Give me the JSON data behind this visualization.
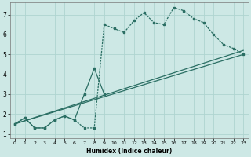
{
  "xlabel": "Humidex (Indice chaleur)",
  "xlim": [
    -0.5,
    23.5
  ],
  "ylim": [
    0.8,
    7.6
  ],
  "xticks": [
    0,
    1,
    2,
    3,
    4,
    5,
    6,
    7,
    8,
    9,
    10,
    11,
    12,
    13,
    14,
    15,
    16,
    17,
    18,
    19,
    20,
    21,
    22,
    23
  ],
  "yticks": [
    1,
    2,
    3,
    4,
    5,
    6,
    7
  ],
  "bg_color": "#cde8e5",
  "grid_color": "#afd4d0",
  "line_color": "#2a6e63",
  "line1_x": [
    0,
    1,
    2,
    3,
    4,
    5,
    6,
    7,
    8,
    9,
    10,
    11,
    12,
    13,
    14,
    15,
    16,
    17,
    18,
    19,
    20,
    21,
    22,
    23
  ],
  "line1_y": [
    1.5,
    1.8,
    1.3,
    1.3,
    1.7,
    1.9,
    1.7,
    1.3,
    1.3,
    6.5,
    6.3,
    6.1,
    6.7,
    7.1,
    6.6,
    6.5,
    7.35,
    7.2,
    6.8,
    6.6,
    6.0,
    5.5,
    5.3,
    5.0
  ],
  "line2_x": [
    0,
    1,
    2,
    3,
    4,
    5,
    6,
    7,
    8,
    9
  ],
  "line2_y": [
    1.5,
    1.8,
    1.3,
    1.3,
    1.7,
    1.9,
    1.7,
    3.0,
    4.3,
    3.0
  ],
  "line3_x": [
    0,
    23
  ],
  "line3_y": [
    1.5,
    5.0
  ],
  "line4_x": [
    0,
    23
  ],
  "line4_y": [
    1.5,
    5.2
  ]
}
